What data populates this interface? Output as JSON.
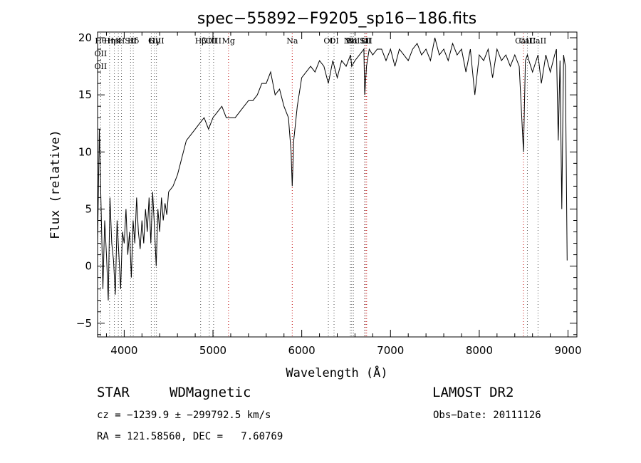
{
  "chart_data": {
    "type": "line",
    "title": "spec−55892−F9205_sp16−186.fits",
    "xlabel": "Wavelength (Å)",
    "ylabel": "Flux (relative)",
    "xlim": [
      3700,
      9100
    ],
    "ylim": [
      -6.2,
      20.5
    ],
    "x_ticks": [
      4000,
      5000,
      6000,
      7000,
      8000,
      9000
    ],
    "y_ticks": [
      -5,
      0,
      5,
      10,
      15,
      20
    ],
    "x_minor_step": 200,
    "y_minor_step": 1,
    "grid": false,
    "line_color": "#000000",
    "lines": [
      {
        "labels": [
          "Hθ",
          "OII",
          "OII"
        ],
        "wavelength": 3735,
        "color": "#555555"
      },
      {
        "labels": [
          "Hη"
        ],
        "wavelength": 3835,
        "color": "#555555"
      },
      {
        "labels": [
          "HeI"
        ],
        "wavelength": 3889,
        "color": "#555555"
      },
      {
        "labels": [
          "K"
        ],
        "wavelength": 3934,
        "color": "#555555"
      },
      {
        "labels": [
          "H"
        ],
        "wavelength": 3969,
        "color": "#555555"
      },
      {
        "labels": [
          "SII"
        ],
        "wavelength": 4072,
        "color": "#555555"
      },
      {
        "labels": [
          "Hδ"
        ],
        "wavelength": 4102,
        "color": "#555555"
      },
      {
        "labels": [
          "G"
        ],
        "wavelength": 4305,
        "color": "#555555"
      },
      {
        "labels": [
          "Hγ"
        ],
        "wavelength": 4341,
        "color": "#555555"
      },
      {
        "labels": [
          "OIII"
        ],
        "wavelength": 4363,
        "color": "#555555"
      },
      {
        "labels": [
          "Hβ"
        ],
        "wavelength": 4861,
        "color": "#555555"
      },
      {
        "labels": [
          "OIII"
        ],
        "wavelength": 4959,
        "color": "#555555"
      },
      {
        "labels": [
          "OIII"
        ],
        "wavelength": 5007,
        "color": "#555555"
      },
      {
        "labels": [
          "Mg"
        ],
        "wavelength": 5175,
        "color": "#c00000"
      },
      {
        "labels": [
          "Na"
        ],
        "wavelength": 5893,
        "color": "#c00000"
      },
      {
        "labels": [
          "OI"
        ],
        "wavelength": 6300,
        "color": "#555555"
      },
      {
        "labels": [
          "OI"
        ],
        "wavelength": 6364,
        "color": "#555555"
      },
      {
        "labels": [
          "NII"
        ],
        "wavelength": 6548,
        "color": "#555555"
      },
      {
        "labels": [
          "Hα"
        ],
        "wavelength": 6563,
        "color": "#555555"
      },
      {
        "labels": [
          "NII"
        ],
        "wavelength": 6583,
        "color": "#555555"
      },
      {
        "labels": [
          "Li"
        ],
        "wavelength": 6708,
        "color": "#555555"
      },
      {
        "labels": [
          "SII"
        ],
        "wavelength": 6716,
        "color": "#c00000"
      },
      {
        "labels": [
          "SII"
        ],
        "wavelength": 6731,
        "color": "#c00000"
      },
      {
        "labels": [
          "CaII"
        ],
        "wavelength": 8498,
        "color": "#c00000"
      },
      {
        "labels": [
          "CaII"
        ],
        "wavelength": 8542,
        "color": "#555555"
      },
      {
        "labels": [
          "CaII"
        ],
        "wavelength": 8662,
        "color": "#555555"
      }
    ],
    "series": [
      {
        "x": [
          3700,
          3720,
          3740,
          3760,
          3780,
          3800,
          3820,
          3840,
          3860,
          3880,
          3900,
          3920,
          3940,
          3960,
          3980,
          4000,
          4020,
          4040,
          4060,
          4080,
          4100,
          4120,
          4140,
          4160,
          4180,
          4200,
          4220,
          4240,
          4260,
          4280,
          4300,
          4320,
          4340,
          4360,
          4380,
          4400,
          4420,
          4440,
          4460,
          4480,
          4500,
          4550,
          4600,
          4650,
          4700,
          4750,
          4800,
          4850,
          4900,
          4950,
          5000,
          5050,
          5100,
          5150,
          5200,
          5250,
          5300,
          5350,
          5400,
          5450,
          5500,
          5550,
          5600,
          5650,
          5700,
          5750,
          5800,
          5850,
          5880,
          5893,
          5910,
          5950,
          6000,
          6050,
          6100,
          6150,
          6200,
          6250,
          6300,
          6350,
          6400,
          6450,
          6500,
          6550,
          6563,
          6600,
          6650,
          6700,
          6710,
          6730,
          6760,
          6800,
          6850,
          6900,
          6950,
          7000,
          7050,
          7100,
          7150,
          7200,
          7250,
          7300,
          7350,
          7400,
          7450,
          7500,
          7550,
          7600,
          7650,
          7700,
          7750,
          7800,
          7850,
          7900,
          7950,
          8000,
          8050,
          8100,
          8150,
          8200,
          8250,
          8300,
          8350,
          8400,
          8450,
          8498,
          8520,
          8542,
          8560,
          8600,
          8662,
          8700,
          8750,
          8800,
          8850,
          8870,
          8890,
          8910,
          8930,
          8950,
          8970,
          8990
        ],
        "y": [
          2.0,
          12.0,
          5.0,
          -2.0,
          4.0,
          1.0,
          -3.0,
          6.0,
          2.0,
          0.5,
          -2.5,
          4.0,
          1.0,
          -2.0,
          3.0,
          2.0,
          5.0,
          1.0,
          3.0,
          -1.0,
          4.0,
          2.0,
          6.0,
          3.0,
          1.5,
          4.0,
          2.0,
          5.0,
          3.0,
          6.0,
          2.0,
          6.5,
          3.5,
          0.0,
          5.0,
          3.0,
          6.0,
          4.0,
          5.5,
          4.5,
          6.5,
          7.0,
          8.0,
          9.5,
          11.0,
          11.5,
          12.0,
          12.5,
          13.0,
          12.0,
          13.0,
          13.5,
          14.0,
          13.0,
          13.0,
          13.0,
          13.5,
          14.0,
          14.5,
          14.5,
          15.0,
          16.0,
          16.0,
          17.0,
          15.0,
          15.5,
          14.0,
          13.0,
          10.0,
          7.0,
          11.0,
          14.0,
          16.5,
          17.0,
          17.5,
          17.0,
          18.0,
          17.5,
          16.0,
          18.0,
          16.5,
          18.0,
          17.5,
          18.5,
          17.5,
          18.0,
          18.5,
          19.0,
          15.0,
          17.5,
          19.0,
          18.5,
          19.0,
          19.0,
          18.0,
          19.0,
          17.5,
          19.0,
          18.5,
          18.0,
          19.0,
          19.5,
          18.5,
          19.0,
          18.0,
          20.0,
          18.5,
          19.0,
          18.0,
          19.5,
          18.5,
          19.0,
          17.0,
          19.0,
          15.0,
          18.5,
          18.0,
          19.0,
          16.5,
          19.0,
          18.0,
          18.5,
          17.5,
          18.5,
          17.5,
          10.0,
          18.0,
          18.5,
          18.0,
          17.0,
          18.5,
          16.0,
          18.5,
          17.0,
          18.5,
          19.0,
          11.0,
          18.0,
          5.0,
          18.5,
          17.5,
          0.5
        ]
      }
    ]
  },
  "info": {
    "object_class": "STAR",
    "object_subclass": "WDMagnetic",
    "survey": "LAMOST DR2",
    "redshift": "cz = −1239.9 ± −299792.5 km/s",
    "obs_date": "Obs−Date: 20111126",
    "coordinates": "RA = 121.58560, DEC =   7.60769"
  }
}
